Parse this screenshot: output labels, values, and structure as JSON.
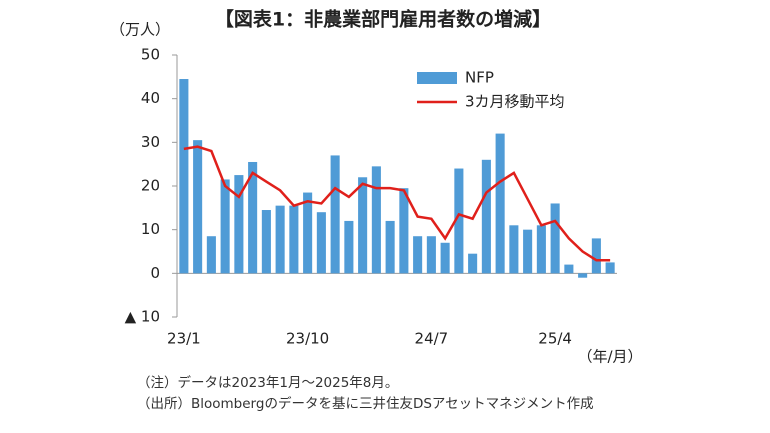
{
  "chart_data": {
    "type": "bar",
    "title": "【図表1：非農業部門雇用者数の増減】",
    "y_unit": "（万人）",
    "x_unit": "（年/月）",
    "categories": [
      "23/1",
      null,
      null,
      null,
      null,
      null,
      null,
      null,
      null,
      "23/10",
      null,
      null,
      null,
      null,
      null,
      null,
      null,
      null,
      "24/7",
      null,
      null,
      null,
      null,
      null,
      null,
      null,
      null,
      "25/4",
      null,
      null,
      null,
      null
    ],
    "series": [
      {
        "name": "NFP",
        "type": "bar",
        "color": "#4f9bd6",
        "values": [
          44.5,
          30.5,
          8.5,
          21.5,
          22.5,
          25.5,
          14.5,
          15.5,
          15.5,
          18.5,
          14,
          27,
          12,
          22,
          24.5,
          12,
          19.5,
          8.5,
          8.5,
          7,
          24,
          4.5,
          26,
          32,
          11,
          10,
          11,
          16,
          2,
          -1,
          8,
          2.5
        ]
      },
      {
        "name": "3カ月移動平均",
        "type": "line",
        "color": "#e0201b",
        "values": [
          28.5,
          29,
          28,
          20,
          17.5,
          23,
          21,
          19,
          15.5,
          16.5,
          16,
          19.5,
          17.5,
          20.5,
          19.5,
          19.5,
          19,
          13,
          12.5,
          8,
          13.5,
          12.5,
          18.5,
          21,
          23,
          17,
          11,
          12,
          8,
          5,
          3,
          3
        ]
      }
    ],
    "ylim": [
      -10,
      50
    ],
    "yticks": [
      {
        "value": -10,
        "label": "▲ 10"
      },
      0,
      10,
      20,
      30,
      40,
      50
    ],
    "legend": "top-right",
    "notes": [
      "（注）データは2023年1月～2025年8月。",
      "（出所）Bloombergのデータを基に三井住友DSアセットマネジメント作成"
    ]
  }
}
